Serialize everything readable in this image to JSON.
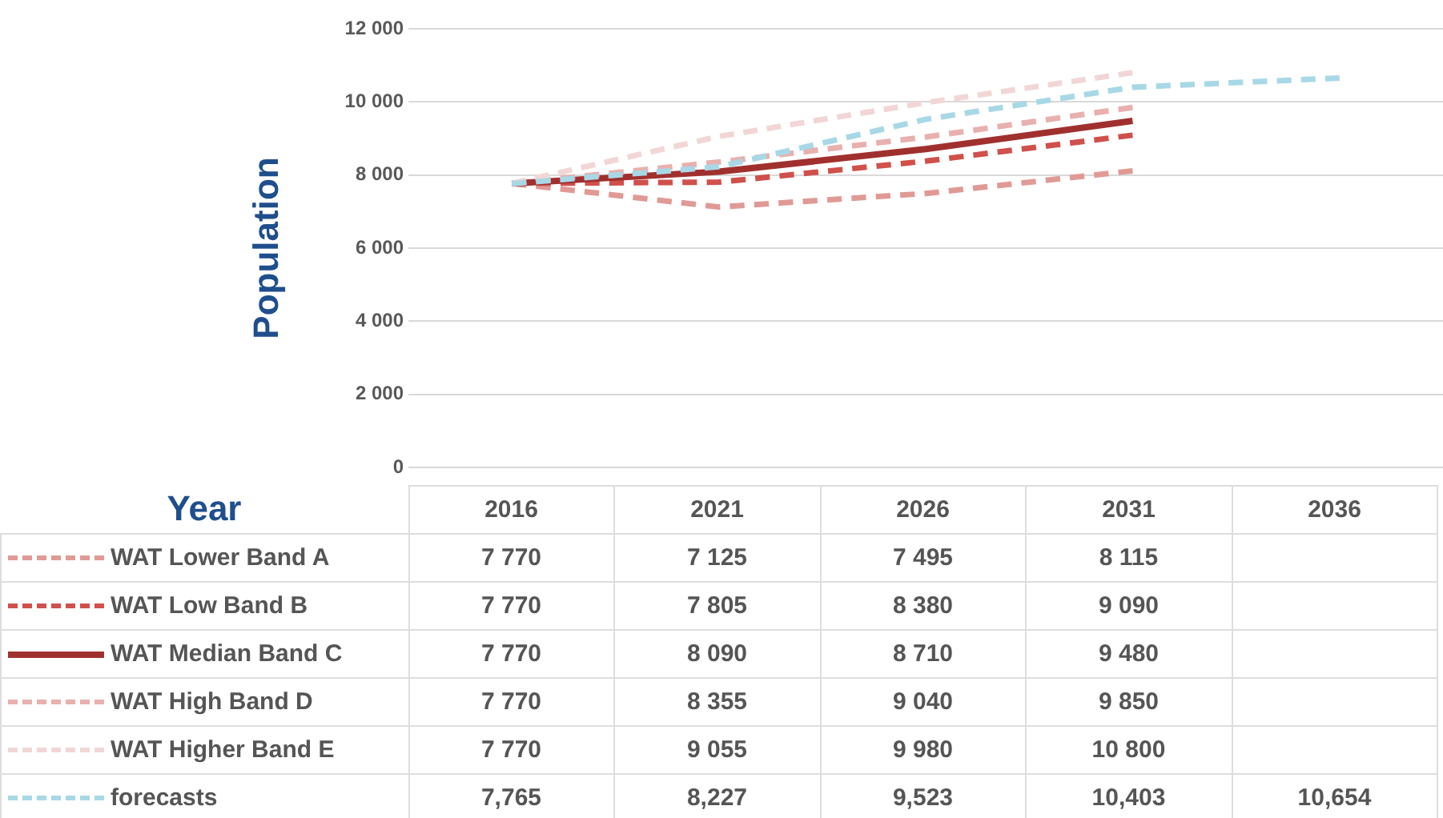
{
  "chart_data": {
    "type": "line",
    "ylabel": "Population",
    "xlabel": "Year",
    "categories": [
      "2016",
      "2021",
      "2026",
      "2031",
      "2036"
    ],
    "ylim": [
      0,
      12000
    ],
    "yticks": [
      {
        "value": 0,
        "label": "0"
      },
      {
        "value": 2000,
        "label": "2 000"
      },
      {
        "value": 4000,
        "label": "4 000"
      },
      {
        "value": 6000,
        "label": "6 000"
      },
      {
        "value": 8000,
        "label": "8 000"
      },
      {
        "value": 10000,
        "label": "10 000"
      },
      {
        "value": 12000,
        "label": "12 000"
      }
    ],
    "grid": "y",
    "legend": "bottom",
    "marker": "none",
    "series": [
      {
        "name": "WAT Lower Band A",
        "color": "#e09a96",
        "line_style": "dashed",
        "values": [
          7770,
          7125,
          7495,
          8115,
          null
        ],
        "value_labels": [
          "7 770",
          "7 125",
          "7 495",
          "8 115",
          null
        ]
      },
      {
        "name": "WAT Low Band B",
        "color": "#d0504c",
        "line_style": "dashed",
        "values": [
          7770,
          7805,
          8380,
          9090,
          null
        ],
        "value_labels": [
          "7 770",
          "7 805",
          "8 380",
          "9 090",
          null
        ]
      },
      {
        "name": "WAT Median Band C",
        "color": "#a0302e",
        "line_style": "solid",
        "values": [
          7770,
          8090,
          8710,
          9480,
          null
        ],
        "value_labels": [
          "7 770",
          "8 090",
          "8 710",
          "9 480",
          null
        ]
      },
      {
        "name": "WAT High Band D",
        "color": "#e8b0ae",
        "line_style": "dashed",
        "values": [
          7770,
          8355,
          9040,
          9850,
          null
        ],
        "value_labels": [
          "7 770",
          "8 355",
          "9 040",
          "9 850",
          null
        ]
      },
      {
        "name": "WAT Higher Band E",
        "color": "#f2d6d6",
        "line_style": "dashed",
        "values": [
          7770,
          9055,
          9980,
          10800,
          null
        ],
        "value_labels": [
          "7 770",
          "9 055",
          "9 980",
          "10 800",
          null
        ]
      },
      {
        "name": "forecasts",
        "color": "#a8d8e6",
        "line_style": "dashed",
        "values": [
          7765,
          8227,
          9523,
          10403,
          10654
        ],
        "value_labels": [
          "7,765",
          "8,227",
          "9,523",
          "10,403",
          "10,654"
        ]
      }
    ]
  }
}
